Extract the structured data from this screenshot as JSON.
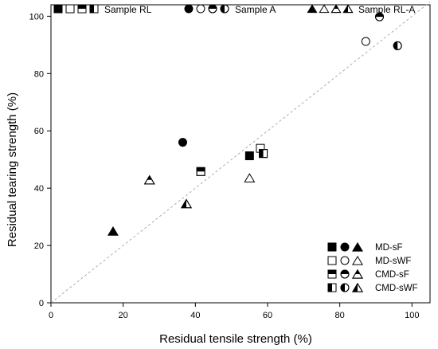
{
  "chart_data": {
    "type": "scatter",
    "title": "",
    "xlabel": "Residual tensile strength (%)",
    "ylabel": "Residual tearing strength (%)",
    "xlim": [
      0,
      105
    ],
    "ylim": [
      0,
      104
    ],
    "xticks": [
      "0",
      "20",
      "40",
      "60",
      "80",
      "100"
    ],
    "yticks": [
      "0",
      "20",
      "40",
      "60",
      "80",
      "100"
    ],
    "grid": false,
    "reference_line": {
      "style": "dashed",
      "color": "#999999",
      "from": [
        0,
        0
      ],
      "to": [
        105,
        105
      ]
    },
    "shapes": {
      "Sample RL": "square",
      "Sample A": "circle",
      "Sample RL-A": "triangle"
    },
    "fills": {
      "MD-sF": "full",
      "MD-sWF": "empty",
      "CMD-sF": "top",
      "CMD-sWF": "left"
    },
    "top_legend": [
      {
        "label": "Sample RL",
        "shape": "square"
      },
      {
        "label": "Sample A",
        "shape": "circle"
      },
      {
        "label": "Sample RL-A",
        "shape": "triangle"
      }
    ],
    "fill_legend": [
      {
        "label": "MD-sF",
        "fill": "full"
      },
      {
        "label": "MD-sWF",
        "fill": "empty"
      },
      {
        "label": "CMD-sF",
        "fill": "top"
      },
      {
        "label": "CMD-sWF",
        "fill": "left"
      }
    ],
    "legend_position": "bottom-right",
    "points": [
      {
        "sample": "Sample RL",
        "condition": "MD-sF",
        "x": 55.0,
        "y": 51.3
      },
      {
        "sample": "Sample RL",
        "condition": "MD-sWF",
        "x": 58.0,
        "y": 53.9
      },
      {
        "sample": "Sample RL",
        "condition": "CMD-sF",
        "x": 41.5,
        "y": 45.8
      },
      {
        "sample": "Sample RL",
        "condition": "CMD-sWF",
        "x": 58.8,
        "y": 52.1
      },
      {
        "sample": "Sample A",
        "condition": "MD-sF",
        "x": 36.5,
        "y": 56.0
      },
      {
        "sample": "Sample A",
        "condition": "MD-sWF",
        "x": 87.2,
        "y": 91.2
      },
      {
        "sample": "Sample A",
        "condition": "CMD-sF",
        "x": 91.0,
        "y": 99.8
      },
      {
        "sample": "Sample A",
        "condition": "CMD-sWF",
        "x": 96.0,
        "y": 89.7
      },
      {
        "sample": "Sample RL-A",
        "condition": "MD-sF",
        "x": 17.2,
        "y": 25.0
      },
      {
        "sample": "Sample RL-A",
        "condition": "MD-sWF",
        "x": 55.0,
        "y": 43.6
      },
      {
        "sample": "Sample RL-A",
        "condition": "CMD-sF",
        "x": 27.3,
        "y": 42.9
      },
      {
        "sample": "Sample RL-A",
        "condition": "CMD-sWF",
        "x": 37.5,
        "y": 34.6
      }
    ]
  }
}
